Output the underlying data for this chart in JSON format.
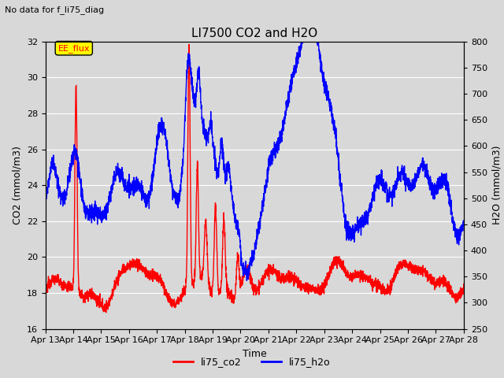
{
  "title": "LI7500 CO2 and H2O",
  "subtitle": "No data for f_li75_diag",
  "xlabel": "Time",
  "ylabel_left": "CO2 (mmol/m3)",
  "ylabel_right": "H2O (mmol/m3)",
  "ylim_left": [
    16,
    32
  ],
  "ylim_right": [
    250,
    800
  ],
  "yticks_left": [
    16,
    18,
    20,
    22,
    24,
    26,
    28,
    30,
    32
  ],
  "yticks_right": [
    250,
    300,
    350,
    400,
    450,
    500,
    550,
    600,
    650,
    700,
    750,
    800
  ],
  "xtick_labels": [
    "Apr 13",
    "Apr 14",
    "Apr 15",
    "Apr 16",
    "Apr 17",
    "Apr 18",
    "Apr 19",
    "Apr 20",
    "Apr 21",
    "Apr 22",
    "Apr 23",
    "Apr 24",
    "Apr 25",
    "Apr 26",
    "Apr 27",
    "Apr 28"
  ],
  "legend_label_co2": "li75_co2",
  "legend_label_h2o": "li75_h2o",
  "color_co2": "#ff0000",
  "color_h2o": "#0000ff",
  "bg_color": "#d8d8d8",
  "plot_bg_color": "#d8d8d8",
  "annotation_box_color": "#ffff00",
  "annotation_text": "EE_flux",
  "grid_color": "#ffffff",
  "linewidth": 1.0
}
